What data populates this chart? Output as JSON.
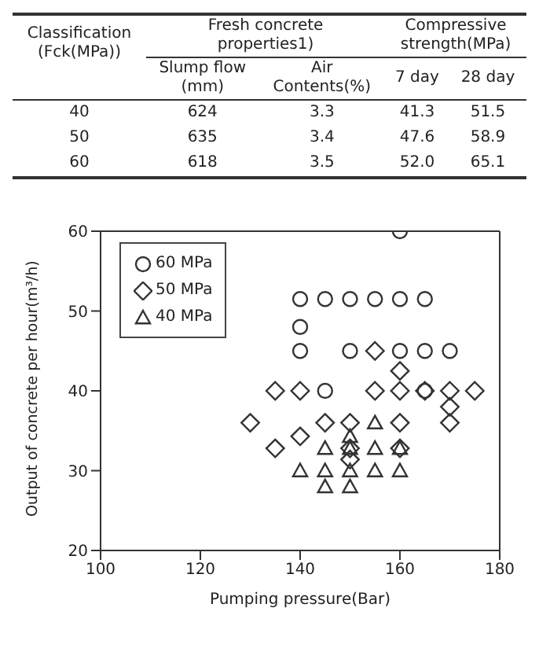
{
  "chart_data": [
    {
      "type": "other",
      "annotations": [
        "Classification\n(Fck(MPa))",
        "Fresh concrete\nproperties1)",
        "Compressive\nstrength(MPa)",
        "Slump flow\n(mm)",
        "Air\nContents(%)",
        "7 day",
        "28 day",
        "40",
        "624",
        "3.3",
        "41.3",
        "51.5",
        "50",
        "635",
        "3.4",
        "47.6",
        "58.9",
        "60",
        "618",
        "3.5",
        "52.0",
        "65.1"
      ]
    },
    {
      "type": "scatter",
      "xlabel": "Pumping pressure(Bar)",
      "ylabel": "Output of concrete per hour(m³/h)",
      "xlim": [
        100,
        180
      ],
      "xticks": [
        100,
        120,
        140,
        160,
        180
      ],
      "ylim": [
        20,
        60
      ],
      "yticks": [
        20,
        30,
        40,
        50,
        60
      ],
      "grid": false,
      "legend": "top left",
      "series": [
        {
          "name": "60 MPa",
          "color": "#333333",
          "marker": "circle",
          "x": [
            140,
            145,
            150,
            155,
            160,
            165,
            160,
            140,
            140,
            150,
            160,
            165,
            170,
            145,
            165
          ],
          "values": [
            51.5,
            51.5,
            51.5,
            51.5,
            51.5,
            51.5,
            60,
            48,
            45,
            45,
            45,
            45,
            45,
            40,
            40
          ]
        },
        {
          "name": "50 MPa",
          "color": "#333333",
          "marker": "diamond",
          "x": [
            155,
            160,
            135,
            140,
            155,
            160,
            165,
            170,
            175,
            170,
            130,
            145,
            150,
            160,
            170,
            140,
            135,
            150,
            160,
            150
          ],
          "values": [
            45,
            42.5,
            40,
            40,
            40,
            40,
            40,
            40,
            40,
            38,
            36,
            36,
            36,
            36,
            36,
            34.3,
            32.8,
            32.8,
            32.8,
            31.4
          ]
        },
        {
          "name": "40 MPa",
          "color": "#333333",
          "marker": "triangle",
          "x": [
            155,
            150,
            145,
            150,
            155,
            160,
            140,
            145,
            150,
            155,
            160,
            145,
            150
          ],
          "values": [
            36,
            34.3,
            32.8,
            32.8,
            32.8,
            32.8,
            30,
            30,
            30,
            30,
            30,
            28,
            28
          ]
        }
      ]
    }
  ]
}
